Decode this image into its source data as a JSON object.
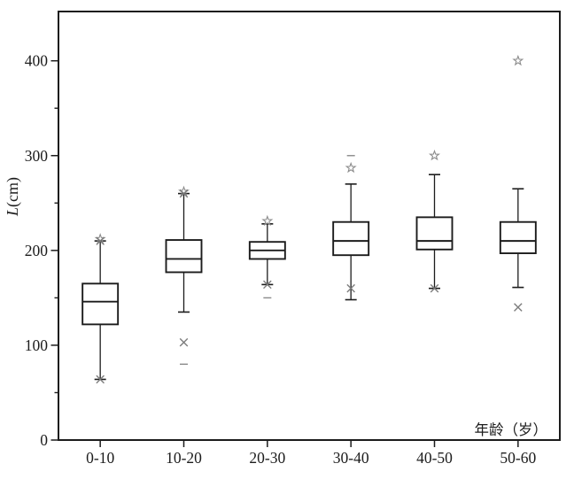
{
  "page": {
    "background": "#ffffff"
  },
  "chart_data": {
    "type": "boxplot",
    "title": "",
    "xlabel": "年龄（岁）",
    "ylabel": "L(cm)",
    "categories": [
      "0-10",
      "10-20",
      "20-30",
      "30-40",
      "40-50",
      "50-60"
    ],
    "ylim": [
      0,
      452
    ],
    "yticks": [
      0,
      100,
      200,
      300,
      400
    ],
    "yticks_minor": [
      50,
      150,
      250,
      350
    ],
    "grid": false,
    "legend": "none",
    "colors": {
      "axis": "#1c1c1c",
      "box_line": "#1c1c1c",
      "box_fill": "#ffffff",
      "marker_cross": "#7d7d7d",
      "marker_dash": "#8a8a8a",
      "marker_star": "#8c8c8c",
      "background": "#ffffff"
    },
    "boxes": [
      {
        "category": "0-10",
        "q1": 122,
        "median": 146,
        "q3": 165,
        "whisker_low": 64,
        "whisker_high": 210,
        "markers": [
          {
            "type": "star",
            "value": 212
          },
          {
            "type": "cross",
            "value": 210
          },
          {
            "type": "cross",
            "value": 64
          }
        ]
      },
      {
        "category": "10-20",
        "q1": 177,
        "median": 191,
        "q3": 211,
        "whisker_low": 135,
        "whisker_high": 260,
        "markers": [
          {
            "type": "star",
            "value": 262
          },
          {
            "type": "cross",
            "value": 260
          },
          {
            "type": "cross",
            "value": 103
          },
          {
            "type": "dash",
            "value": 80
          }
        ]
      },
      {
        "category": "20-30",
        "q1": 191,
        "median": 200,
        "q3": 209,
        "whisker_low": 164,
        "whisker_high": 228,
        "markers": [
          {
            "type": "star",
            "value": 231
          },
          {
            "type": "cross",
            "value": 164
          },
          {
            "type": "dash",
            "value": 150
          }
        ]
      },
      {
        "category": "30-40",
        "q1": 195,
        "median": 210,
        "q3": 230,
        "whisker_low": 148,
        "whisker_high": 270,
        "markers": [
          {
            "type": "dash",
            "value": 300
          },
          {
            "type": "star",
            "value": 287
          },
          {
            "type": "cross",
            "value": 160
          }
        ]
      },
      {
        "category": "40-50",
        "q1": 201,
        "median": 210,
        "q3": 235,
        "whisker_low": 160,
        "whisker_high": 280,
        "markers": [
          {
            "type": "star",
            "value": 300
          },
          {
            "type": "cross",
            "value": 160
          }
        ]
      },
      {
        "category": "50-60",
        "q1": 197,
        "median": 210,
        "q3": 230,
        "whisker_low": 161,
        "whisker_high": 265,
        "markers": [
          {
            "type": "star",
            "value": 400
          },
          {
            "type": "cross",
            "value": 140
          }
        ]
      }
    ]
  }
}
